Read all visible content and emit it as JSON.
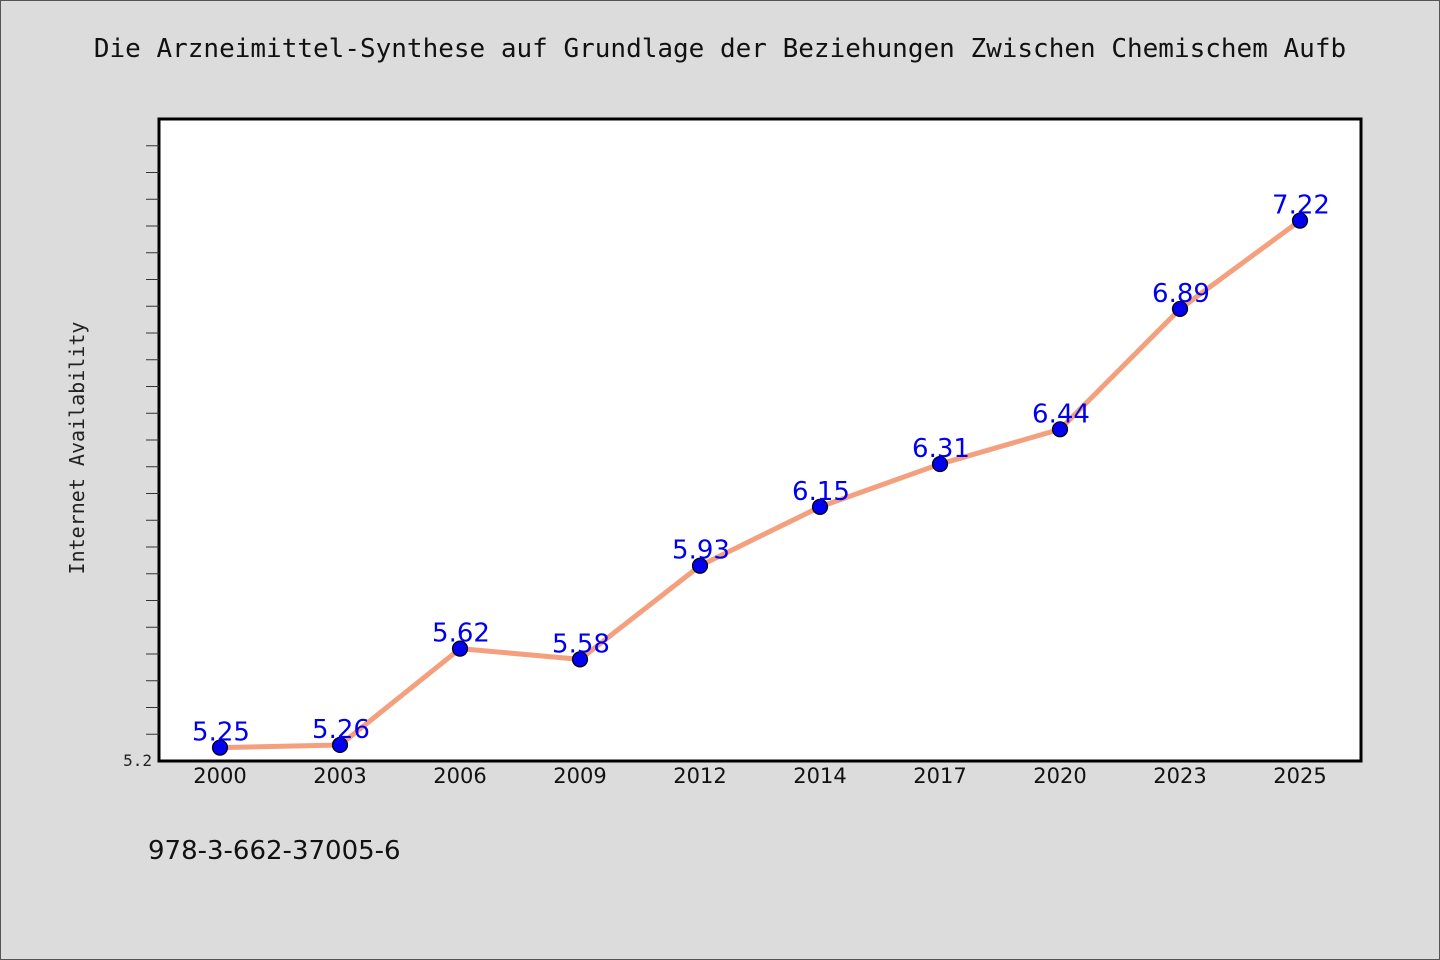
{
  "chart_data": {
    "type": "line",
    "title": "Die Arzneimittel-Synthese auf Grundlage der Beziehungen Zwischen Chemischem Aufb",
    "ylabel": "Internet Availability",
    "xlabel": "",
    "categories": [
      "2000",
      "2003",
      "2006",
      "2009",
      "2012",
      "2014",
      "2017",
      "2020",
      "2023",
      "2025"
    ],
    "values": [
      5.25,
      5.26,
      5.62,
      5.58,
      5.93,
      6.15,
      6.31,
      6.44,
      6.89,
      7.22
    ],
    "data_labels": [
      "5.25",
      "5.26",
      "5.62",
      "5.58",
      "5.93",
      "6.15",
      "6.31",
      "6.44",
      "6.89",
      "7.22"
    ],
    "ylim": [
      5.2,
      7.6
    ],
    "y_tick_label": "5.2",
    "grid": false,
    "legend": "none",
    "line_color": "#f4a07e",
    "marker_color": "#0000ee",
    "label_color": "#0000ee",
    "background": "#dcdcdc",
    "plot_background": "#ffffff"
  },
  "footer": {
    "isbn": "978-3-662-37005-6"
  }
}
